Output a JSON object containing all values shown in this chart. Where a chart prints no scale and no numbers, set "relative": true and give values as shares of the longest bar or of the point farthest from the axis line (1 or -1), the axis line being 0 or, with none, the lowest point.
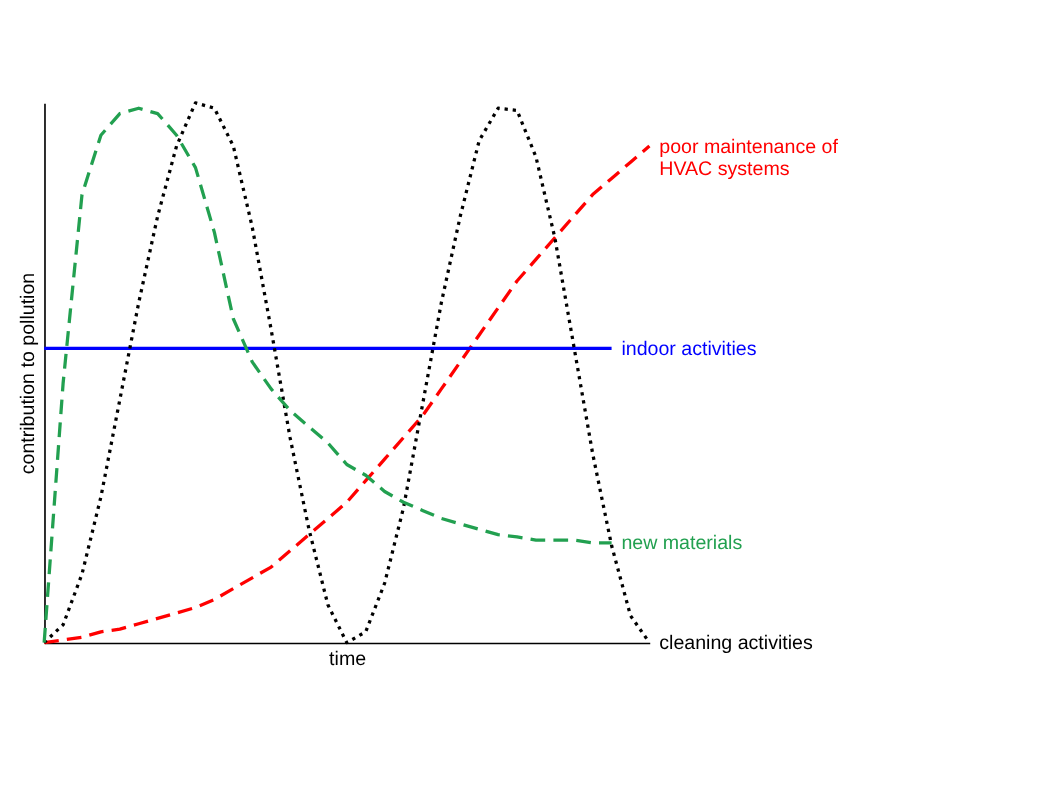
{
  "chart_data": {
    "type": "line",
    "relative": true,
    "xlabel": "time",
    "ylabel": "contribution to pollution",
    "legend": false,
    "grid": false,
    "categories": [
      null,
      null,
      null,
      null,
      null,
      null,
      null,
      null,
      null,
      null,
      null,
      null,
      null,
      null,
      null,
      null,
      null,
      null,
      null,
      null,
      null,
      null,
      null,
      null,
      null,
      null,
      null,
      null,
      null,
      null,
      null,
      null,
      null
    ],
    "series": [
      {
        "name": "poor maintenance of HVAC systems",
        "color": "#ff0000",
        "line_style": "dashed",
        "values": [
          0,
          0.005,
          0.01,
          0.02,
          0.025,
          0.035,
          0.045,
          0.055,
          0.065,
          0.08,
          0.1,
          0.12,
          0.14,
          0.17,
          0.2,
          0.23,
          0.26,
          0.3,
          0.34,
          0.38,
          0.42,
          0.47,
          0.52,
          0.57,
          0.62,
          0.67,
          0.71,
          0.75,
          0.79,
          0.83,
          0.86,
          0.89,
          0.92
        ]
      },
      {
        "name": "indoor activities",
        "color": "#0000ff",
        "line_style": "solid",
        "values": [
          0.545,
          0.545,
          0.545,
          0.545,
          0.545,
          0.545,
          0.545,
          0.545,
          0.545,
          0.545,
          0.545,
          0.545,
          0.545,
          0.545,
          0.545,
          0.545,
          0.545,
          0.545,
          0.545,
          0.545,
          0.545,
          0.545,
          0.545,
          0.545,
          0.545,
          0.545,
          0.545,
          0.545,
          0.545,
          0.545,
          0.545,
          null,
          null
        ]
      },
      {
        "name": "cleaning activities",
        "color": "#000000",
        "line_style": "dotted",
        "values": [
          0,
          0.033,
          0.127,
          0.27,
          0.45,
          0.63,
          0.79,
          0.92,
          1,
          0.99,
          0.92,
          0.77,
          0.58,
          0.38,
          0.21,
          0.07,
          0,
          0.02,
          0.11,
          0.25,
          0.44,
          0.63,
          0.79,
          0.93,
          0.99,
          0.986,
          0.9,
          0.75,
          0.55,
          0.35,
          0.18,
          0.05,
          0
        ]
      },
      {
        "name": "new materials",
        "color": "#22a050",
        "line_style": "dashed",
        "values": [
          0,
          0.48,
          0.83,
          0.94,
          0.98,
          0.99,
          0.98,
          0.94,
          0.88,
          0.76,
          0.6,
          0.52,
          0.47,
          0.43,
          0.4,
          0.37,
          0.33,
          0.31,
          0.28,
          0.26,
          0.245,
          0.23,
          0.22,
          0.21,
          0.2,
          0.196,
          0.19,
          0.19,
          0.19,
          0.185,
          0.185,
          null,
          null
        ]
      }
    ]
  }
}
